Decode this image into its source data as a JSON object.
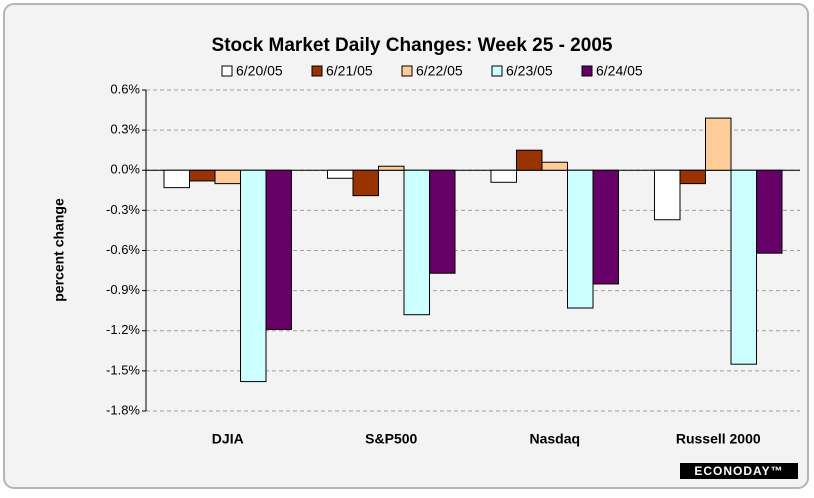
{
  "chart_data": {
    "type": "bar",
    "title": "Stock Market Daily Changes: Week 25 -  2005",
    "y_label": "percent change",
    "brand": "ECONODAY™",
    "categories": [
      "DJIA",
      "S&P500",
      "Nasdaq",
      "Russell 2000"
    ],
    "series": [
      {
        "name": "6/20/05",
        "color": "#ffffff",
        "values": [
          -0.13,
          -0.06,
          -0.09,
          -0.37
        ]
      },
      {
        "name": "6/21/05",
        "color": "#993300",
        "values": [
          -0.08,
          -0.19,
          0.15,
          -0.1
        ]
      },
      {
        "name": "6/22/05",
        "color": "#ffcc99",
        "values": [
          -0.1,
          0.03,
          0.06,
          0.39
        ]
      },
      {
        "name": "6/23/05",
        "color": "#ccffff",
        "values": [
          -1.58,
          -1.08,
          -1.03,
          -1.45
        ]
      },
      {
        "name": "6/24/05",
        "color": "#660066",
        "values": [
          -1.19,
          -0.77,
          -0.85,
          -0.62
        ]
      }
    ],
    "ylim": [
      -1.8,
      0.6
    ],
    "yticks": [
      {
        "value": 0.6,
        "label": "0.6%"
      },
      {
        "value": 0.3,
        "label": "0.3%"
      },
      {
        "value": 0.0,
        "label": "0.0%"
      },
      {
        "value": -0.3,
        "label": "-0.3%"
      },
      {
        "value": -0.6,
        "label": "-0.6%"
      },
      {
        "value": -0.9,
        "label": "-0.9%"
      },
      {
        "value": -1.2,
        "label": "-1.2%"
      },
      {
        "value": -1.5,
        "label": "-1.5%"
      },
      {
        "value": -1.8,
        "label": "-1.8%"
      }
    ],
    "grid": true
  }
}
